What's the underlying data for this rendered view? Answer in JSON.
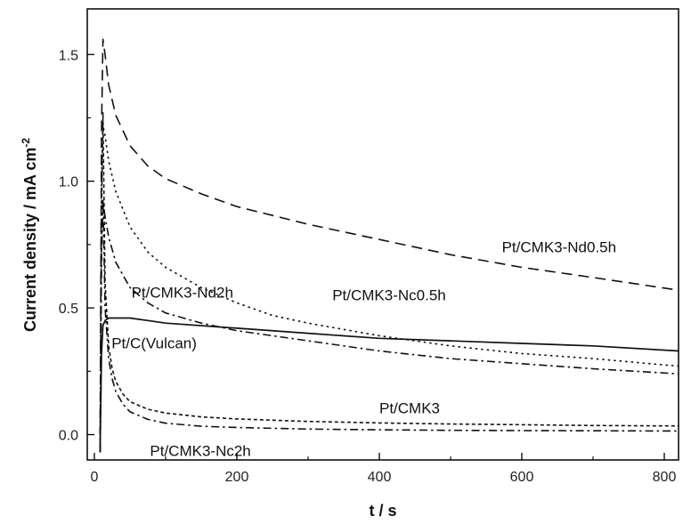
{
  "chart_data": {
    "type": "line",
    "xlabel": "t / s",
    "ylabel_main": "Current density / mA cm",
    "ylabel_sup": "-2",
    "xlim": [
      -10,
      820
    ],
    "ylim": [
      -0.1,
      1.68
    ],
    "xticks": [
      "0",
      "200",
      "400",
      "600",
      "800"
    ],
    "yticks": [
      "0.0",
      "0.5",
      "1.0",
      "1.5"
    ],
    "xtick_values": [
      0,
      200,
      400,
      600,
      800
    ],
    "ytick_values": [
      0.0,
      0.5,
      1.0,
      1.5
    ],
    "grid": false,
    "legend": "none",
    "series": [
      {
        "name": "Pt/CMK3-Nd0.5h",
        "style": "dashed",
        "x": [
          8,
          10,
          12,
          15,
          20,
          30,
          50,
          75,
          100,
          150,
          200,
          300,
          400,
          500,
          600,
          700,
          820
        ],
        "y": [
          -0.07,
          1.2,
          1.56,
          1.5,
          1.38,
          1.26,
          1.14,
          1.06,
          1.01,
          0.95,
          0.9,
          0.83,
          0.77,
          0.71,
          0.66,
          0.62,
          0.57
        ]
      },
      {
        "name": "Pt/CMK3-Nc0.5h",
        "style": "dotted",
        "x": [
          8,
          10,
          12,
          15,
          20,
          30,
          50,
          75,
          100,
          150,
          200,
          250,
          300,
          400,
          500,
          600,
          700,
          820
        ],
        "y": [
          -0.07,
          1.0,
          1.22,
          1.18,
          1.08,
          0.96,
          0.82,
          0.72,
          0.66,
          0.58,
          0.52,
          0.47,
          0.44,
          0.39,
          0.35,
          0.32,
          0.3,
          0.27
        ]
      },
      {
        "name": "Pt/CMK3-Nd2h",
        "style": "dash-dot",
        "x": [
          8,
          10,
          12,
          15,
          20,
          30,
          50,
          75,
          100,
          150,
          200,
          250,
          300,
          400,
          500,
          600,
          700,
          820
        ],
        "y": [
          -0.07,
          0.7,
          0.92,
          0.86,
          0.78,
          0.68,
          0.58,
          0.52,
          0.48,
          0.44,
          0.41,
          0.39,
          0.37,
          0.33,
          0.3,
          0.28,
          0.26,
          0.24
        ]
      },
      {
        "name": "Pt/C(Vulcan)",
        "style": "solid",
        "x": [
          8,
          10,
          12,
          15,
          20,
          30,
          50,
          75,
          100,
          200,
          300,
          400,
          500,
          600,
          700,
          820
        ],
        "y": [
          -0.07,
          0.32,
          0.43,
          0.45,
          0.46,
          0.46,
          0.46,
          0.45,
          0.44,
          0.42,
          0.4,
          0.38,
          0.37,
          0.36,
          0.35,
          0.33
        ]
      },
      {
        "name": "Pt/CMK3",
        "style": "short-dash",
        "x": [
          8,
          10,
          12,
          15,
          20,
          25,
          30,
          40,
          50,
          75,
          100,
          150,
          200,
          300,
          400,
          500,
          600,
          700,
          820
        ],
        "y": [
          -0.07,
          0.85,
          1.27,
          0.6,
          0.35,
          0.26,
          0.21,
          0.16,
          0.13,
          0.1,
          0.085,
          0.07,
          0.062,
          0.052,
          0.046,
          0.042,
          0.039,
          0.036,
          0.034
        ]
      },
      {
        "name": "Pt/CMK3-Nc2h",
        "style": "dash-dot",
        "x": [
          8,
          10,
          12,
          15,
          20,
          25,
          30,
          40,
          50,
          75,
          100,
          150,
          200,
          300,
          400,
          500,
          600,
          700,
          820
        ],
        "y": [
          -0.07,
          0.7,
          0.93,
          0.5,
          0.3,
          0.22,
          0.17,
          0.12,
          0.09,
          0.06,
          0.045,
          0.033,
          0.028,
          0.022,
          0.019,
          0.017,
          0.016,
          0.015,
          0.014
        ]
      }
    ],
    "annotations": [
      {
        "text": "Pt/CMK3-Nd0.5h",
        "x": 572,
        "y": 0.72
      },
      {
        "text": "Pt/CMK3-Nc0.5h",
        "x": 334,
        "y": 0.53
      },
      {
        "text": "Pt/CMK3-Nd2h",
        "x": 52,
        "y": 0.54
      },
      {
        "text": "Pt/C(Vulcan)",
        "x": 24,
        "y": 0.34
      },
      {
        "text": "Pt/CMK3",
        "x": 400,
        "y": 0.085
      },
      {
        "text": "Pt/CMK3-Nc2h",
        "x": 78,
        "y": -0.085
      }
    ]
  }
}
